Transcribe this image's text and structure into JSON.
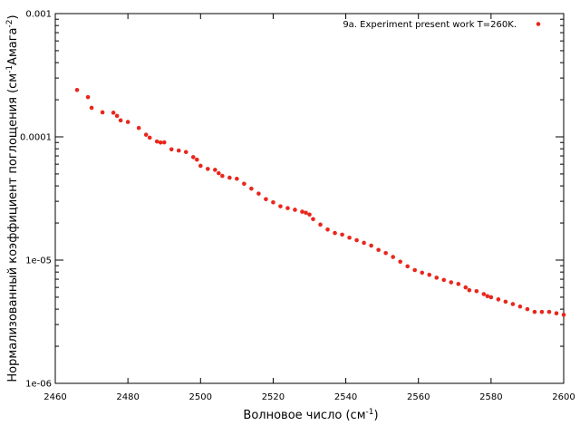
{
  "chart_data": {
    "type": "scatter",
    "title": "",
    "xlabel": "Волновое число (см",
    "xlabel_sup": "-1",
    "xlabel_end": ")",
    "ylabel": "Нормализованный коэффициент поглощения (см",
    "ylabel_sup1": "-1",
    "ylabel_mid": "Амага",
    "ylabel_sup2": "-2",
    "ylabel_end": ")",
    "xlim": [
      2460,
      2600
    ],
    "ylim": [
      1e-06,
      0.001
    ],
    "yscale": "log",
    "grid": false,
    "legend_position": "top-right",
    "x_ticks": [
      "2460",
      "2480",
      "2500",
      "2520",
      "2540",
      "2560",
      "2580",
      "2600"
    ],
    "y_ticks": [
      "1e-06",
      "1e-05",
      "0.0001",
      "0.001"
    ],
    "series": [
      {
        "name": "9a. Experiment  present work T=260K.",
        "color": "#e8271d",
        "x": [
          2466,
          2469,
          2470,
          2473,
          2476,
          2477,
          2478,
          2480,
          2483,
          2485,
          2486,
          2488,
          2489,
          2490,
          2492,
          2494,
          2496,
          2498,
          2499,
          2500,
          2502,
          2504,
          2505,
          2506,
          2508,
          2510,
          2512,
          2514,
          2516,
          2518,
          2520,
          2522,
          2524,
          2526,
          2528,
          2529,
          2530,
          2531,
          2533,
          2535,
          2537,
          2539,
          2541,
          2543,
          2545,
          2547,
          2549,
          2551,
          2553,
          2555,
          2557,
          2559,
          2561,
          2563,
          2565,
          2567,
          2569,
          2571,
          2573,
          2574,
          2576,
          2578,
          2579,
          2580,
          2582,
          2584,
          2586,
          2588,
          2590,
          2592,
          2594,
          2596,
          2598,
          2600
        ],
        "y": [
          0.00024,
          0.00021,
          0.000172,
          0.000158,
          0.000157,
          0.000148,
          0.000136,
          0.000132,
          0.000118,
          0.000104,
          9.85e-05,
          9.17e-05,
          8.99e-05,
          9.02e-05,
          7.92e-05,
          7.74e-05,
          7.53e-05,
          6.84e-05,
          6.53e-05,
          5.82e-05,
          5.49e-05,
          5.4e-05,
          5.07e-05,
          4.82e-05,
          4.66e-05,
          4.57e-05,
          4.16e-05,
          3.8e-05,
          3.46e-05,
          3.12e-05,
          2.94e-05,
          2.73e-05,
          2.64e-05,
          2.56e-05,
          2.47e-05,
          2.42e-05,
          2.34e-05,
          2.15e-05,
          1.94e-05,
          1.77e-05,
          1.66e-05,
          1.61e-05,
          1.52e-05,
          1.45e-05,
          1.38e-05,
          1.31e-05,
          1.21e-05,
          1.14e-05,
          1.06e-05,
          9.7e-06,
          8.9e-06,
          8.3e-06,
          7.9e-06,
          7.6e-06,
          7.2e-06,
          6.9e-06,
          6.6e-06,
          6.4e-06,
          6e-06,
          5.7e-06,
          5.6e-06,
          5.3e-06,
          5.1e-06,
          5e-06,
          4.8e-06,
          4.6e-06,
          4.4e-06,
          4.2e-06,
          4e-06,
          3.8e-06,
          3.8e-06,
          3.8e-06,
          3.7e-06,
          3.6e-06
        ]
      }
    ]
  }
}
